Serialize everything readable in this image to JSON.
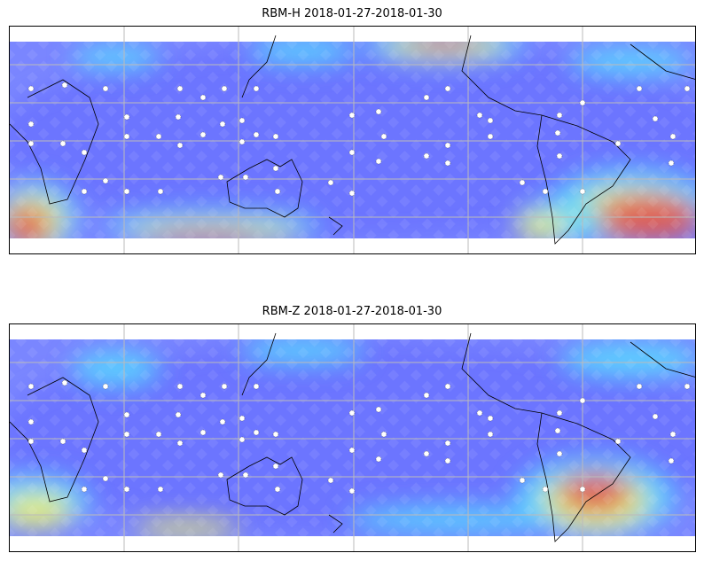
{
  "figure": {
    "panels": [
      {
        "title": "RBM-H 2018-01-27-2018-01-30",
        "hotspots": "south-pacific, south-atlantic, south-africa, north-pacific"
      },
      {
        "title": "RBM-Z 2018-01-27-2018-01-30",
        "hotspots": "south-america"
      }
    ]
  },
  "colors": {
    "low": "#6a6aff",
    "mid": "#5ad8ff",
    "mid2": "#f0f070",
    "high": "#e05050"
  }
}
